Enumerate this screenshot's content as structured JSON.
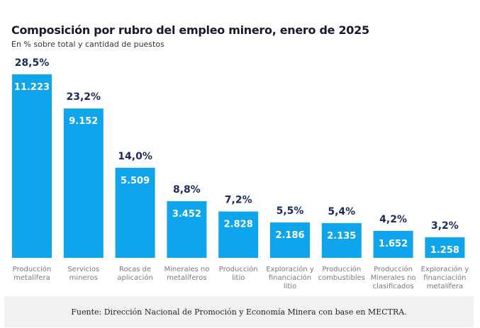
{
  "chart_data": {
    "type": "bar",
    "title": "Composición por rubro del empleo minero, enero de 2025",
    "subtitle": "En % sobre total y cantidad de puestos",
    "categories": [
      [
        "Producción",
        "metalífera"
      ],
      [
        "Servicios",
        "mineros"
      ],
      [
        "Rocas de",
        "aplicación"
      ],
      [
        "Minerales no",
        "metalíferos"
      ],
      [
        "Producción",
        "litio"
      ],
      [
        "Exploración y",
        "financiación",
        "litio"
      ],
      [
        "Producción",
        "combustibles"
      ],
      [
        "Producción",
        "Minerales no",
        "clasificados"
      ],
      [
        "Exploración y",
        "financiación",
        "metalífera"
      ]
    ],
    "values": [
      28.5,
      23.2,
      14.0,
      8.8,
      7.2,
      5.5,
      5.4,
      4.2,
      3.2
    ],
    "value_labels": [
      "28,5%",
      "23,2%",
      "14,0%",
      "8,8%",
      "7,2%",
      "5,5%",
      "5,4%",
      "4,2%",
      "3,2%"
    ],
    "counts": [
      11223,
      9152,
      5509,
      3452,
      2828,
      2186,
      2135,
      1652,
      1258
    ],
    "count_labels": [
      "11.223",
      "9.152",
      "5.509",
      "3.452",
      "2.828",
      "2.186",
      "2.135",
      "1.652",
      "1.258"
    ],
    "xlabel": "",
    "ylabel": "",
    "ylim": [
      0,
      28.5
    ],
    "grid": false,
    "bar_color": "#0ea5ec",
    "pct_label_color": "#1b2a5c"
  },
  "footer": {
    "source": "Fuente: Dirección Nacional de Promoción y Economía Minera con base en MECTRA."
  }
}
